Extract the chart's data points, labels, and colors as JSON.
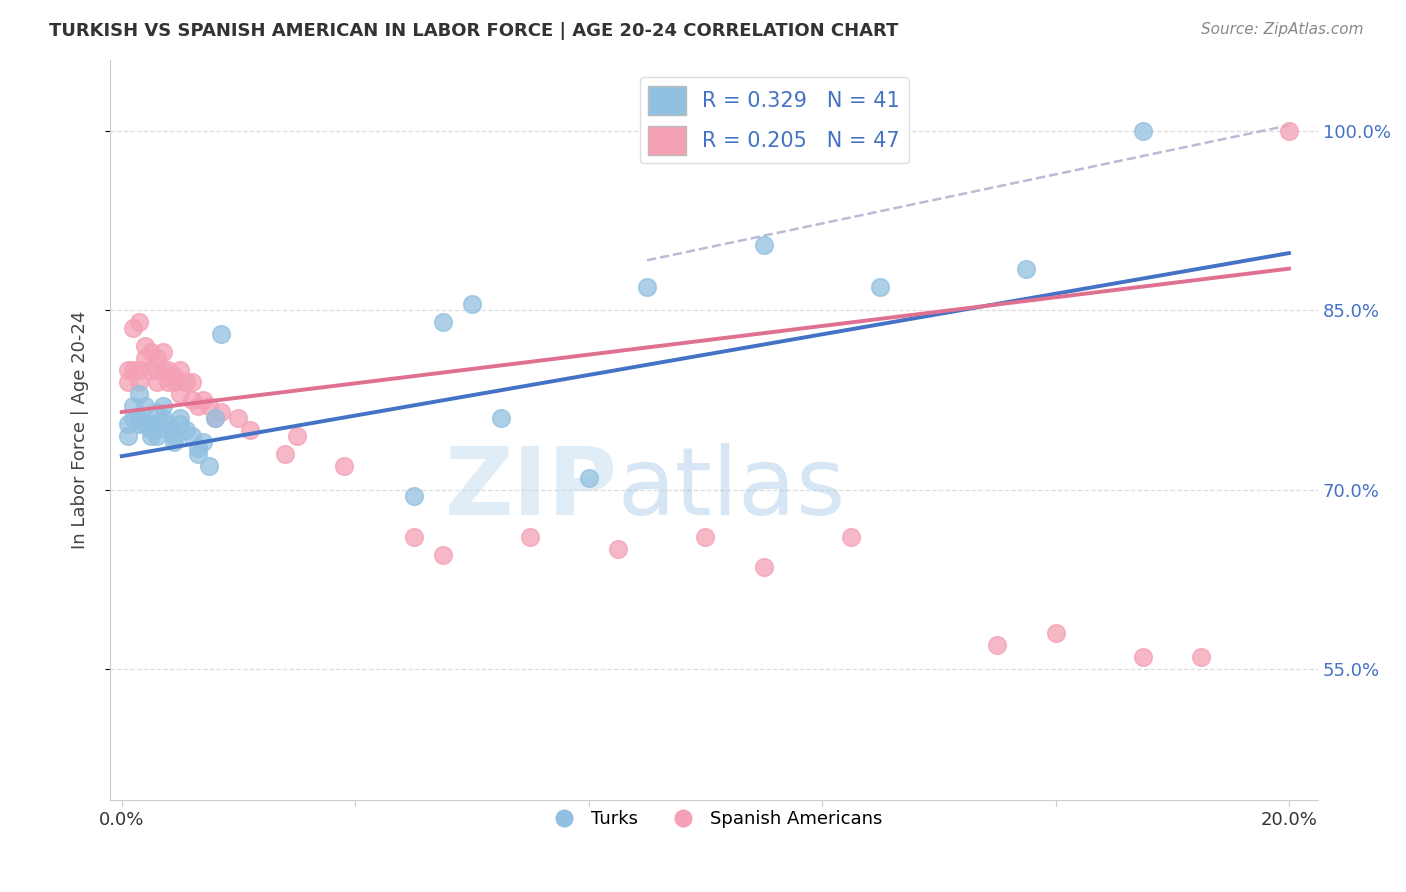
{
  "title": "TURKISH VS SPANISH AMERICAN IN LABOR FORCE | AGE 20-24 CORRELATION CHART",
  "source": "Source: ZipAtlas.com",
  "ylabel": "In Labor Force | Age 20-24",
  "yticks": [
    0.55,
    0.7,
    0.85,
    1.0
  ],
  "ytick_labels": [
    "55.0%",
    "70.0%",
    "85.0%",
    "100.0%"
  ],
  "xticks": [
    0.0,
    0.04,
    0.08,
    0.12,
    0.16,
    0.2
  ],
  "xlim": [
    -0.002,
    0.205
  ],
  "ylim": [
    0.44,
    1.06
  ],
  "legend_blue_label": "R = 0.329   N = 41",
  "legend_pink_label": "R = 0.205   N = 47",
  "turks_x": [
    0.001,
    0.001,
    0.002,
    0.002,
    0.003,
    0.003,
    0.003,
    0.004,
    0.004,
    0.005,
    0.005,
    0.005,
    0.006,
    0.006,
    0.006,
    0.007,
    0.007,
    0.008,
    0.008,
    0.009,
    0.009,
    0.01,
    0.01,
    0.011,
    0.012,
    0.013,
    0.013,
    0.014,
    0.015,
    0.016,
    0.017,
    0.05,
    0.055,
    0.06,
    0.065,
    0.08,
    0.09,
    0.11,
    0.13,
    0.155,
    0.175
  ],
  "turks_y": [
    0.755,
    0.745,
    0.77,
    0.76,
    0.78,
    0.76,
    0.755,
    0.77,
    0.755,
    0.755,
    0.75,
    0.745,
    0.765,
    0.755,
    0.745,
    0.77,
    0.76,
    0.755,
    0.75,
    0.745,
    0.74,
    0.76,
    0.755,
    0.75,
    0.745,
    0.735,
    0.73,
    0.74,
    0.72,
    0.76,
    0.83,
    0.695,
    0.84,
    0.855,
    0.76,
    0.71,
    0.87,
    0.905,
    0.87,
    0.885,
    1.0
  ],
  "spanish_x": [
    0.001,
    0.001,
    0.002,
    0.002,
    0.003,
    0.003,
    0.003,
    0.004,
    0.004,
    0.005,
    0.005,
    0.006,
    0.006,
    0.006,
    0.007,
    0.007,
    0.008,
    0.008,
    0.009,
    0.009,
    0.01,
    0.01,
    0.011,
    0.012,
    0.012,
    0.013,
    0.014,
    0.015,
    0.016,
    0.017,
    0.02,
    0.022,
    0.028,
    0.03,
    0.038,
    0.05,
    0.055,
    0.07,
    0.085,
    0.1,
    0.11,
    0.125,
    0.15,
    0.16,
    0.175,
    0.185,
    0.2
  ],
  "spanish_y": [
    0.8,
    0.79,
    0.835,
    0.8,
    0.79,
    0.84,
    0.8,
    0.82,
    0.81,
    0.815,
    0.8,
    0.8,
    0.79,
    0.81,
    0.8,
    0.815,
    0.8,
    0.79,
    0.795,
    0.79,
    0.8,
    0.78,
    0.79,
    0.79,
    0.775,
    0.77,
    0.775,
    0.77,
    0.76,
    0.765,
    0.76,
    0.75,
    0.73,
    0.745,
    0.72,
    0.66,
    0.645,
    0.66,
    0.65,
    0.66,
    0.635,
    0.66,
    0.57,
    0.58,
    0.56,
    0.56,
    1.0
  ],
  "blue_color": "#92C0E0",
  "pink_color": "#F4A0B5",
  "blue_line_color": "#4472C4",
  "pink_line_color": "#E07090",
  "watermark_zip": "ZIP",
  "watermark_atlas": "atlas",
  "blue_trend": [
    0.0,
    0.728,
    0.2,
    0.898
  ],
  "pink_trend": [
    0.0,
    0.765,
    0.2,
    0.885
  ],
  "dash_line": [
    0.09,
    0.892,
    0.2,
    1.005
  ]
}
